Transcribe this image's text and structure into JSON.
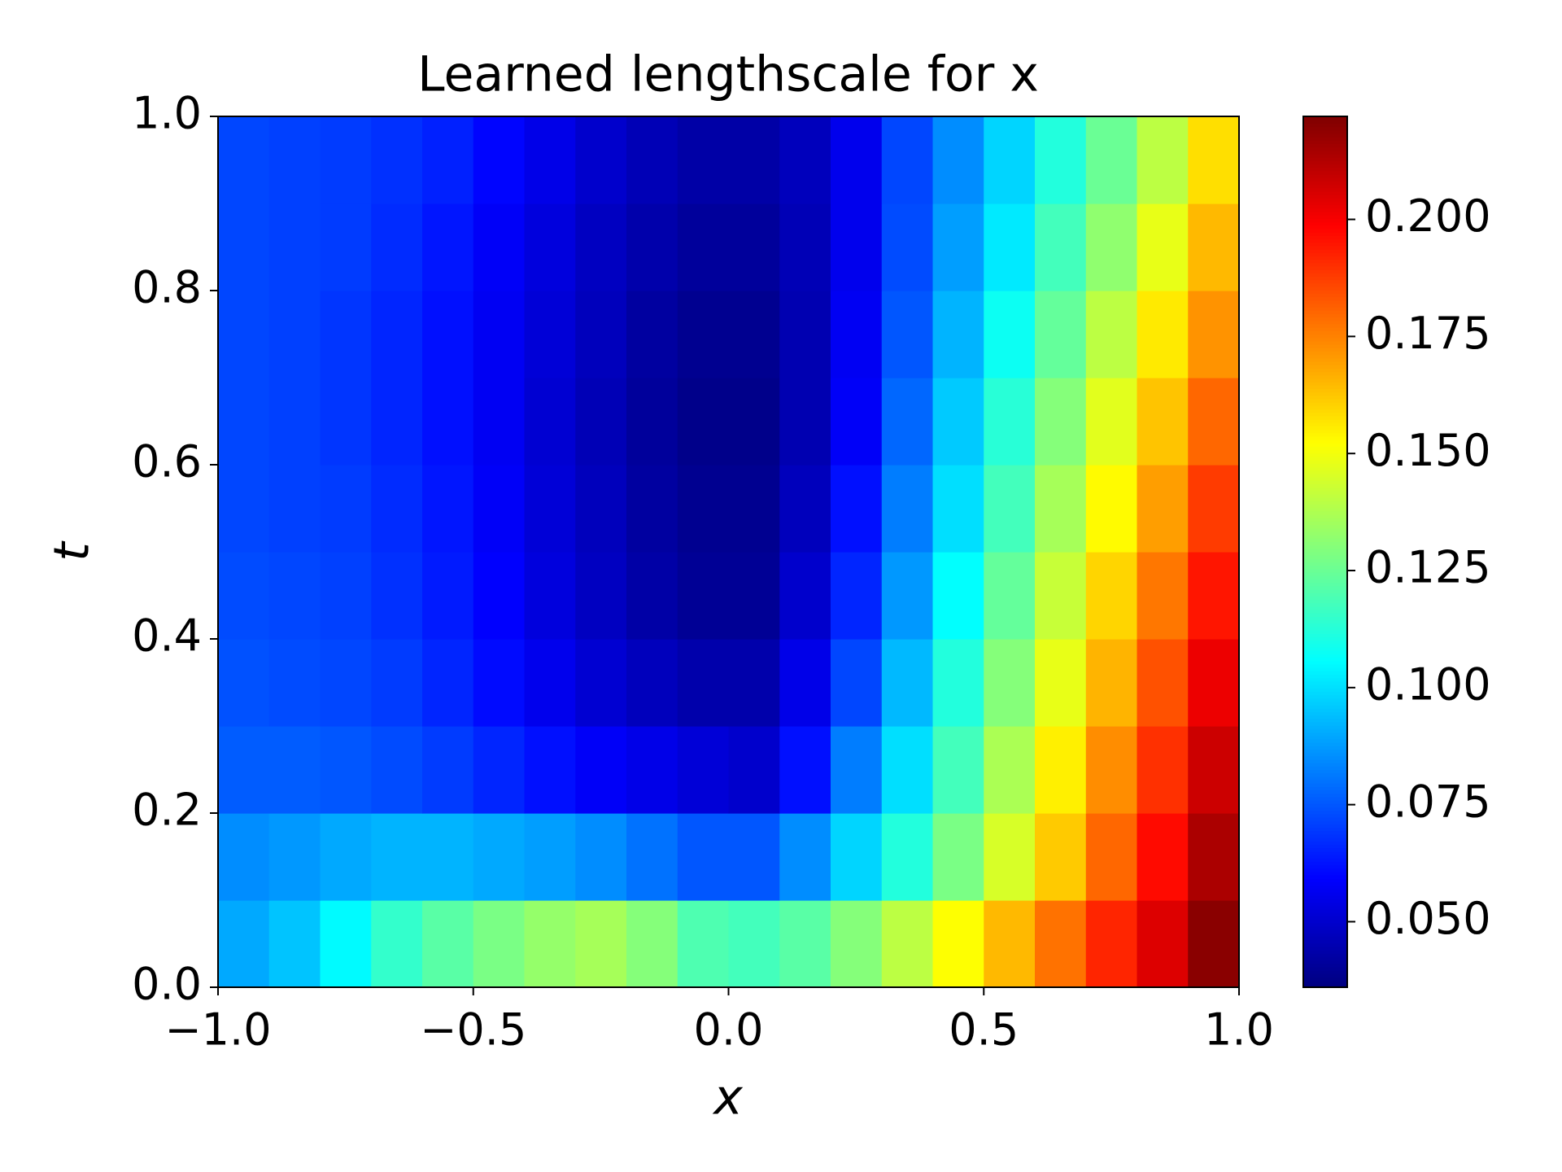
{
  "chart_data": {
    "type": "heatmap",
    "title": "Learned lengthscale for x",
    "x_label": "x",
    "y_label": "t",
    "colormap": "jet",
    "xlim": [
      -1.0,
      1.0
    ],
    "ylim": [
      0.0,
      1.0
    ],
    "xticks": [
      {
        "value": -1.0,
        "label": "−1.0"
      },
      {
        "value": -0.5,
        "label": "−0.5"
      },
      {
        "value": 0.0,
        "label": "0.0"
      },
      0.5,
      {
        "value": 1.0,
        "label": "1.0"
      }
    ],
    "yticks": [
      {
        "value": 0.0,
        "label": "0.0"
      },
      0.2,
      0.4,
      0.6,
      0.8,
      {
        "value": 1.0,
        "label": "1.0"
      }
    ],
    "clim": [
      0.036,
      0.222
    ],
    "cticks": [
      {
        "value": 0.05,
        "label": "0.050"
      },
      0.075,
      {
        "value": 0.1,
        "label": "0.100"
      },
      0.125,
      {
        "value": 0.15,
        "label": "0.150"
      },
      0.175,
      {
        "value": 0.2,
        "label": "0.200"
      }
    ],
    "values": [
      [
        0.09,
        0.095,
        0.105,
        0.115,
        0.122,
        0.128,
        0.133,
        0.136,
        0.13,
        0.12,
        0.118,
        0.122,
        0.13,
        0.14,
        0.152,
        0.165,
        0.178,
        0.192,
        0.205,
        0.22
      ],
      [
        0.085,
        0.087,
        0.09,
        0.092,
        0.092,
        0.09,
        0.088,
        0.085,
        0.08,
        0.075,
        0.075,
        0.085,
        0.098,
        0.112,
        0.128,
        0.145,
        0.162,
        0.18,
        0.197,
        0.214
      ],
      [
        0.076,
        0.076,
        0.075,
        0.073,
        0.07,
        0.066,
        0.062,
        0.058,
        0.055,
        0.052,
        0.05,
        0.062,
        0.082,
        0.1,
        0.118,
        0.137,
        0.155,
        0.173,
        0.19,
        0.208
      ],
      [
        0.074,
        0.073,
        0.072,
        0.07,
        0.066,
        0.061,
        0.056,
        0.051,
        0.047,
        0.044,
        0.044,
        0.055,
        0.072,
        0.093,
        0.112,
        0.13,
        0.148,
        0.166,
        0.184,
        0.202
      ],
      [
        0.073,
        0.072,
        0.071,
        0.068,
        0.064,
        0.059,
        0.053,
        0.048,
        0.043,
        0.04,
        0.04,
        0.05,
        0.066,
        0.087,
        0.106,
        0.124,
        0.142,
        0.16,
        0.177,
        0.195
      ],
      [
        0.072,
        0.071,
        0.07,
        0.067,
        0.063,
        0.058,
        0.052,
        0.047,
        0.042,
        0.039,
        0.039,
        0.047,
        0.062,
        0.082,
        0.1,
        0.118,
        0.136,
        0.153,
        0.17,
        0.188
      ],
      [
        0.072,
        0.071,
        0.069,
        0.066,
        0.062,
        0.057,
        0.051,
        0.046,
        0.041,
        0.038,
        0.038,
        0.045,
        0.058,
        0.078,
        0.096,
        0.113,
        0.13,
        0.147,
        0.163,
        0.18
      ],
      [
        0.072,
        0.071,
        0.069,
        0.066,
        0.062,
        0.057,
        0.052,
        0.047,
        0.042,
        0.039,
        0.039,
        0.045,
        0.057,
        0.075,
        0.092,
        0.108,
        0.124,
        0.14,
        0.156,
        0.172
      ],
      [
        0.072,
        0.071,
        0.07,
        0.067,
        0.063,
        0.058,
        0.053,
        0.048,
        0.044,
        0.041,
        0.041,
        0.046,
        0.056,
        0.073,
        0.088,
        0.102,
        0.118,
        0.132,
        0.148,
        0.165
      ],
      [
        0.072,
        0.071,
        0.07,
        0.068,
        0.065,
        0.06,
        0.055,
        0.05,
        0.046,
        0.043,
        0.043,
        0.047,
        0.056,
        0.072,
        0.085,
        0.098,
        0.112,
        0.125,
        0.14,
        0.158
      ]
    ]
  }
}
